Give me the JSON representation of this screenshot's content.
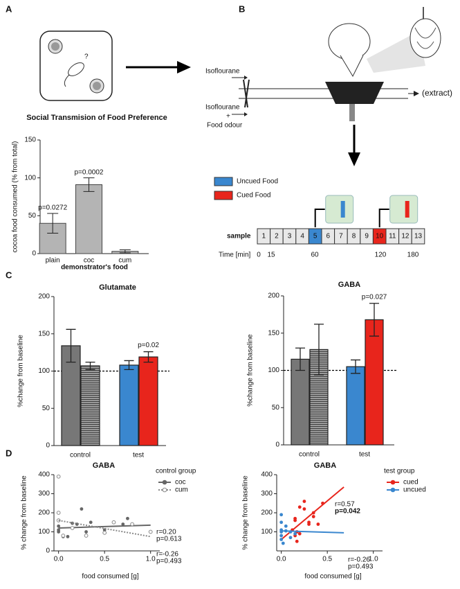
{
  "panels": [
    "A",
    "B",
    "C",
    "D"
  ],
  "diagram_a": {
    "question": "?"
  },
  "diagram_b": {
    "inlet_1": "Isoflourane",
    "inlet_2": [
      "Isoflourane",
      "+",
      "Food odour"
    ],
    "outlet": "(extract)"
  },
  "timeline": {
    "legend": [
      {
        "label": "Uncued Food",
        "color": "#3a87cf",
        "sample": 5
      },
      {
        "label": "Cued Food",
        "color": "#e8251c",
        "sample": 10
      }
    ],
    "row_label": "sample",
    "samples": [
      "1",
      "2",
      "3",
      "4",
      "5",
      "6",
      "7",
      "8",
      "9",
      "10",
      "11",
      "12",
      "13"
    ],
    "time_label": "Time [min]",
    "time_ticks": [
      "0",
      "15",
      "60",
      "120",
      "180"
    ]
  },
  "chart_data": [
    {
      "type": "bar",
      "title": "Social Transmision of Food Preference",
      "ylabel": "cocoa food consumed (% from total)",
      "xlabel": "demonstrator's food",
      "categories": [
        "plain",
        "coc",
        "cum"
      ],
      "values": [
        40,
        91,
        3
      ],
      "errors": [
        13,
        9,
        2
      ],
      "labels": [
        "p=0.0272",
        "p=0.0002",
        null
      ],
      "color": "#b4b4b4",
      "ylim": [
        0,
        150
      ],
      "yticks": [
        0,
        50,
        100,
        150
      ]
    },
    {
      "type": "grouped_bar",
      "title": "Glutamate",
      "ylabel": "%change from baseline",
      "groups": [
        {
          "label": "control",
          "values": [
            134,
            107
          ],
          "errors": [
            22,
            5
          ],
          "colors": [
            "#777777",
            "#888888"
          ],
          "patterns": [
            "solid",
            "stripes"
          ],
          "labels": [
            null,
            null
          ]
        },
        {
          "label": "test",
          "values": [
            108,
            119
          ],
          "errors": [
            6,
            7
          ],
          "colors": [
            "#3a87cf",
            "#e8251c"
          ],
          "patterns": [
            "solid",
            "solid"
          ],
          "labels": [
            null,
            "p=0.02"
          ]
        }
      ],
      "reference_line": 100,
      "ylim": [
        0,
        200
      ],
      "yticks": [
        0,
        50,
        100,
        150,
        200
      ]
    },
    {
      "type": "grouped_bar",
      "title": "GABA",
      "ylabel": "%change from baseline",
      "groups": [
        {
          "label": "control",
          "values": [
            115,
            128
          ],
          "errors": [
            15,
            34
          ],
          "colors": [
            "#777777",
            "#888888"
          ],
          "patterns": [
            "solid",
            "stripes"
          ],
          "labels": [
            null,
            null
          ]
        },
        {
          "label": "test",
          "values": [
            105,
            168
          ],
          "errors": [
            9,
            22
          ],
          "colors": [
            "#3a87cf",
            "#e8251c"
          ],
          "patterns": [
            "solid",
            "solid"
          ],
          "labels": [
            null,
            "p=0.027"
          ]
        }
      ],
      "reference_line": 100,
      "ylim": [
        0,
        200
      ],
      "yticks": [
        0,
        50,
        100,
        150,
        200
      ]
    },
    {
      "type": "scatter",
      "title": "GABA",
      "ylabel": "% change from baseline",
      "xlabel": "food consumed [g]",
      "legend_title": "control group",
      "xlim": [
        -0.05,
        1.1
      ],
      "xticks": [
        {
          "value": 0,
          "label": "0.0"
        },
        0.5,
        {
          "value": 1,
          "label": "1.0"
        }
      ],
      "ylim": [
        0,
        400
      ],
      "yticks": [
        0,
        100,
        200,
        300,
        400
      ],
      "series": [
        {
          "name": "coc",
          "color": "#666666",
          "marker": "filled",
          "line_style": "solid",
          "x": [
            0,
            0,
            0,
            0.05,
            0.1,
            0.15,
            0.2,
            0.25,
            0.3,
            0.35,
            0.5,
            0.7,
            0.75
          ],
          "values": [
            130,
            110,
            100,
            75,
            75,
            145,
            140,
            220,
            100,
            150,
            110,
            140,
            170
          ],
          "fit": {
            "x": [
              0,
              1
            ],
            "values": [
              120,
              135
            ]
          },
          "stats": [
            "r=0.20",
            "p=0.613"
          ],
          "stats_color": "#333333"
        },
        {
          "name": "cum",
          "color": "#888888",
          "marker": "open",
          "line_style": "dotted",
          "x": [
            0,
            0,
            0,
            0.05,
            0.15,
            0.3,
            0.5,
            0.6,
            0.8,
            1.0
          ],
          "values": [
            390,
            200,
            160,
            80,
            120,
            80,
            95,
            150,
            140,
            100
          ],
          "fit": {
            "x": [
              0,
              1
            ],
            "values": [
              160,
              75
            ]
          },
          "stats": [
            "r=-0.26",
            "p=0.493"
          ],
          "stats_color": "#333333"
        }
      ]
    },
    {
      "type": "scatter",
      "title": "GABA",
      "ylabel": "% change from baseline",
      "xlabel": "food consumed [g]",
      "legend_title": "test group",
      "xlim": [
        -0.05,
        1.1
      ],
      "xticks": [
        {
          "value": 0,
          "label": "0.0"
        },
        0.5,
        {
          "value": 1,
          "label": "1.0"
        }
      ],
      "ylim": [
        0,
        400
      ],
      "yticks": [
        100,
        200,
        300,
        400
      ],
      "series": [
        {
          "name": "cued",
          "color": "#e8251c",
          "marker": "filled",
          "line_style": "solid",
          "x": [
            0.12,
            0.15,
            0.15,
            0.15,
            0.17,
            0.17,
            0.2,
            0.2,
            0.25,
            0.25,
            0.3,
            0.3,
            0.35,
            0.35,
            0.4,
            0.45
          ],
          "values": [
            110,
            170,
            160,
            80,
            100,
            50,
            90,
            230,
            220,
            260,
            150,
            140,
            200,
            180,
            140,
            250
          ],
          "fit": {
            "x": [
              0,
              0.68
            ],
            "values": [
              60,
              335
            ]
          },
          "stats": [
            "r=0.57",
            "p=0.042"
          ],
          "stats_color": "#e8251c"
        },
        {
          "name": "uncued",
          "color": "#3a87cf",
          "marker": "filled",
          "line_style": "solid",
          "x": [
            0,
            0,
            0,
            0,
            0,
            0,
            0.02,
            0.05,
            0.05,
            0.1,
            0.1,
            0.15
          ],
          "values": [
            190,
            150,
            110,
            100,
            80,
            60,
            40,
            130,
            105,
            100,
            70,
            90
          ],
          "fit": {
            "x": [
              0,
              0.68
            ],
            "values": [
              105,
              95
            ]
          },
          "stats": [
            "r=-0.26",
            "p=0.493"
          ],
          "stats_color": "#3a87cf"
        }
      ]
    }
  ]
}
